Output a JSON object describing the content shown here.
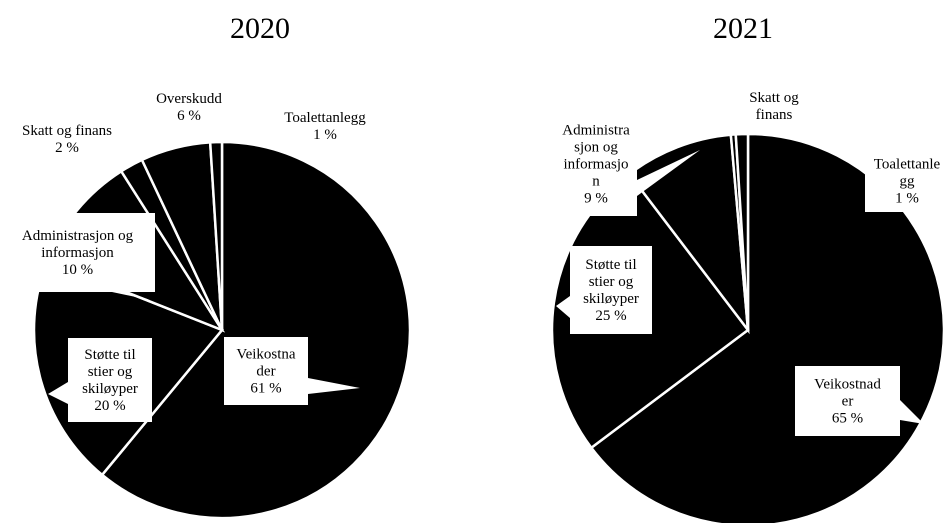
{
  "colors": {
    "slice": "#000000",
    "separator": "#ffffff",
    "label_bg": "#ffffff",
    "text": "#000000"
  },
  "chart_data": [
    {
      "type": "pie",
      "title": "2020",
      "slices": [
        {
          "label": "Veikostnader",
          "value": 61,
          "display": [
            "Veikostna",
            "der",
            "61 %"
          ]
        },
        {
          "label": "Støtte til stier og skiløyper",
          "value": 20,
          "display": [
            "Støtte til",
            "stier og",
            "skiløyper",
            "20 %"
          ]
        },
        {
          "label": "Administrasjon og informasjon",
          "value": 10,
          "display": [
            "Administrasjon og",
            "informasjon",
            "10 %"
          ]
        },
        {
          "label": "Skatt og finans",
          "value": 2,
          "display": [
            "Skatt og finans",
            "2 %"
          ]
        },
        {
          "label": "Overskudd",
          "value": 6,
          "display": [
            "Overskudd",
            "6 %"
          ]
        },
        {
          "label": "Toalettanlegg",
          "value": 1,
          "display": [
            "Toalettanlegg",
            "1 %"
          ]
        }
      ]
    },
    {
      "type": "pie",
      "title": "2021",
      "slices": [
        {
          "label": "Veikostnader",
          "value": 65,
          "display": [
            "Veikostnad",
            "er",
            "65 %"
          ]
        },
        {
          "label": "Støtte til stier og skiløyper",
          "value": 25,
          "display": [
            "Støtte til",
            "stier og",
            "skiløyper",
            "25 %"
          ]
        },
        {
          "label": "Administrasjon og informasjon",
          "value": 9,
          "display": [
            "Administra",
            "sjon og",
            "informasjo",
            "n",
            "9 %"
          ]
        },
        {
          "label": "Skatt og finans",
          "value": 0.4,
          "display": [
            "Skatt og",
            "finans"
          ]
        },
        {
          "label": "Toalettanlegg",
          "value": 1,
          "display": [
            "Toalettanle",
            "gg",
            "1 %"
          ]
        }
      ]
    }
  ]
}
